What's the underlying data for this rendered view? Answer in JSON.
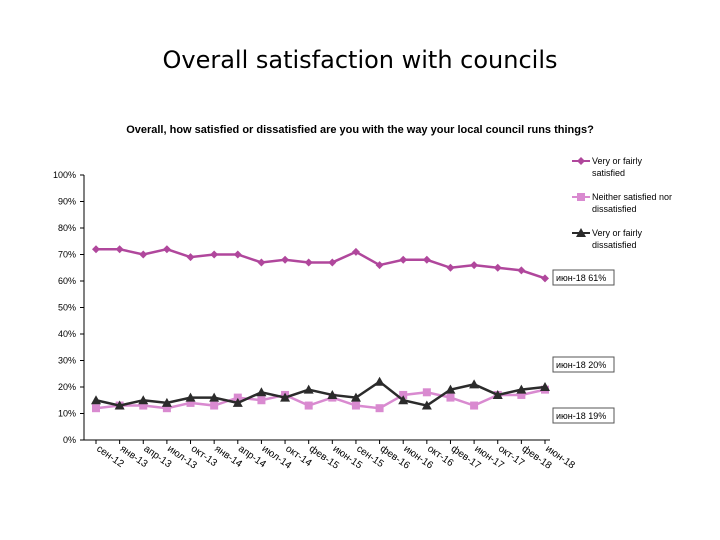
{
  "title": "Overall satisfaction with councils",
  "subtitle": "Overall, how satisfied or dissatisfied are you with the way your local council runs things?",
  "chart_data": {
    "type": "line",
    "categories": [
      "сен-12",
      "янв-13",
      "апр-13",
      "июл-13",
      "окт-13",
      "янв-14",
      "апр-14",
      "июл-14",
      "окт-14",
      "фев-15",
      "июн-15",
      "сен-15",
      "фев-16",
      "июн-16",
      "окт-16",
      "фев-17",
      "июн-17",
      "окт-17",
      "фев-18",
      "июн-18"
    ],
    "ylim": [
      0,
      100
    ],
    "yticks": [
      "0%",
      "10%",
      "20%",
      "30%",
      "40%",
      "50%",
      "60%",
      "70%",
      "80%",
      "90%",
      "100%"
    ],
    "grid": false,
    "legend_position": "right",
    "series": [
      {
        "name": "Very or fairly satisfied",
        "color": "#b0479c",
        "marker": "diamond",
        "values": [
          72,
          72,
          70,
          72,
          69,
          70,
          70,
          67,
          68,
          67,
          67,
          71,
          66,
          68,
          68,
          65,
          66,
          65,
          64,
          61
        ]
      },
      {
        "name": "Neither satisfied nor dissatisfied",
        "color": "#d98ad0",
        "marker": "square",
        "values": [
          12,
          13,
          13,
          12,
          14,
          13,
          16,
          15,
          17,
          13,
          16,
          13,
          12,
          17,
          18,
          16,
          13,
          17,
          17,
          19
        ]
      },
      {
        "name": "Very or fairly dissatisfied",
        "color": "#2b2b2b",
        "marker": "triangle",
        "values": [
          15,
          13,
          15,
          14,
          16,
          16,
          14,
          18,
          16,
          19,
          17,
          16,
          22,
          15,
          13,
          19,
          21,
          17,
          19,
          20
        ]
      }
    ],
    "end_labels": [
      "июн-18  61%",
      "июн-18  20%",
      "июн-18  19%"
    ]
  }
}
